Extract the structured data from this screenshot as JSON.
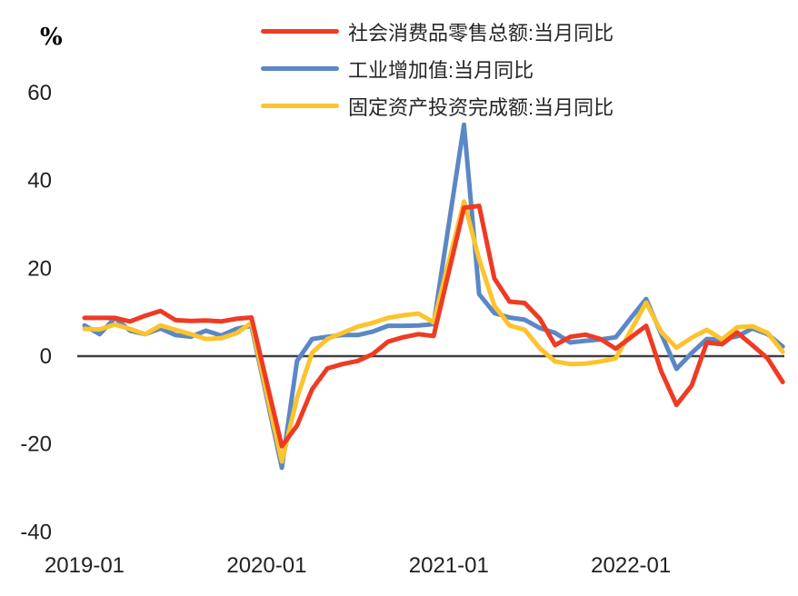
{
  "y_axis": {
    "unit_label": "%",
    "ticks": [
      60,
      40,
      20,
      0,
      -20,
      -40
    ]
  },
  "x_axis": {
    "ticks": [
      "2019-01",
      "2020-01",
      "2021-01",
      "2022-01"
    ]
  },
  "legend": [
    {
      "label": "社会消费品零售总额:当月同比",
      "color": "#ee3b23"
    },
    {
      "label": "工业增加值:当月同比",
      "color": "#5b87c6"
    },
    {
      "label": "固定资产投资完成额:当月同比",
      "color": "#fdc32d"
    }
  ],
  "colors": {
    "retail": "#ee3b23",
    "industrial": "#5b87c6",
    "fai": "#fdc32d",
    "zero_line": "#3f3f3f",
    "tick_text": "#212121"
  },
  "chart_data": {
    "type": "line",
    "title": "",
    "ylabel": "%",
    "ylim": [
      -40,
      60
    ],
    "grid": false,
    "zero_line": true,
    "legend_position": "top-center",
    "draw_order": [
      1,
      2,
      0
    ],
    "x": [
      "2019-01",
      "2019-02",
      "2019-03",
      "2019-04",
      "2019-05",
      "2019-06",
      "2019-07",
      "2019-08",
      "2019-09",
      "2019-10",
      "2019-11",
      "2019-12",
      "2020-01",
      "2020-02",
      "2020-03",
      "2020-04",
      "2020-05",
      "2020-06",
      "2020-07",
      "2020-08",
      "2020-09",
      "2020-10",
      "2020-11",
      "2020-12",
      "2021-01",
      "2021-02",
      "2021-03",
      "2021-04",
      "2021-05",
      "2021-06",
      "2021-07",
      "2021-08",
      "2021-09",
      "2021-10",
      "2021-11",
      "2021-12",
      "2022-01",
      "2022-02",
      "2022-03",
      "2022-04",
      "2022-05",
      "2022-06",
      "2022-07",
      "2022-08",
      "2022-09",
      "2022-10",
      "2022-11"
    ],
    "series": [
      {
        "id": "retail",
        "name": "社会消费品零售总额:当月同比",
        "color": "#ee3b23",
        "values": [
          8.7,
          8.7,
          8.7,
          7.9,
          9.2,
          10.3,
          8.2,
          8.0,
          8.1,
          7.9,
          8.5,
          8.8,
          -5.9,
          -20.5,
          -15.8,
          -7.5,
          -2.8,
          -1.8,
          -1.1,
          0.5,
          3.3,
          4.3,
          5.0,
          4.6,
          19.2,
          33.8,
          34.2,
          17.7,
          12.4,
          12.1,
          8.5,
          2.5,
          4.4,
          4.9,
          3.9,
          1.7,
          4.3,
          6.9,
          -3.5,
          -11.1,
          -6.7,
          3.1,
          2.7,
          5.4,
          2.5,
          -0.5,
          -5.9
        ]
      },
      {
        "id": "industrial",
        "name": "工业增加值:当月同比",
        "color": "#5b87c6",
        "values": [
          7.0,
          5.0,
          8.7,
          5.8,
          5.0,
          6.3,
          4.8,
          4.4,
          5.8,
          4.7,
          6.2,
          6.9,
          -9.3,
          -25.4,
          -1.1,
          3.9,
          4.4,
          4.8,
          4.8,
          5.6,
          6.9,
          6.9,
          7.0,
          7.3,
          30.0,
          52.7,
          14.1,
          9.8,
          8.8,
          8.3,
          6.4,
          5.3,
          3.1,
          3.5,
          3.8,
          4.3,
          8.7,
          13.0,
          5.0,
          -2.9,
          0.7,
          3.9,
          3.8,
          4.5,
          6.3,
          5.0,
          2.2
        ]
      },
      {
        "id": "fai",
        "name": "固定资产投资完成额:当月同比",
        "color": "#fdc32d",
        "values": [
          6.2,
          6.1,
          7.2,
          6.2,
          5.0,
          7.0,
          6.0,
          5.0,
          3.9,
          4.1,
          5.2,
          7.6,
          -8.5,
          -24.0,
          -9.5,
          0.8,
          3.9,
          5.3,
          6.7,
          7.6,
          8.7,
          9.3,
          9.7,
          7.7,
          21.5,
          35.2,
          22.0,
          11.5,
          7.0,
          6.0,
          1.8,
          -1.2,
          -1.8,
          -1.7,
          -1.2,
          -0.5,
          5.9,
          12.2,
          5.5,
          1.9,
          4.2,
          6.0,
          3.8,
          6.6,
          6.8,
          5.3,
          1.0
        ]
      }
    ]
  }
}
